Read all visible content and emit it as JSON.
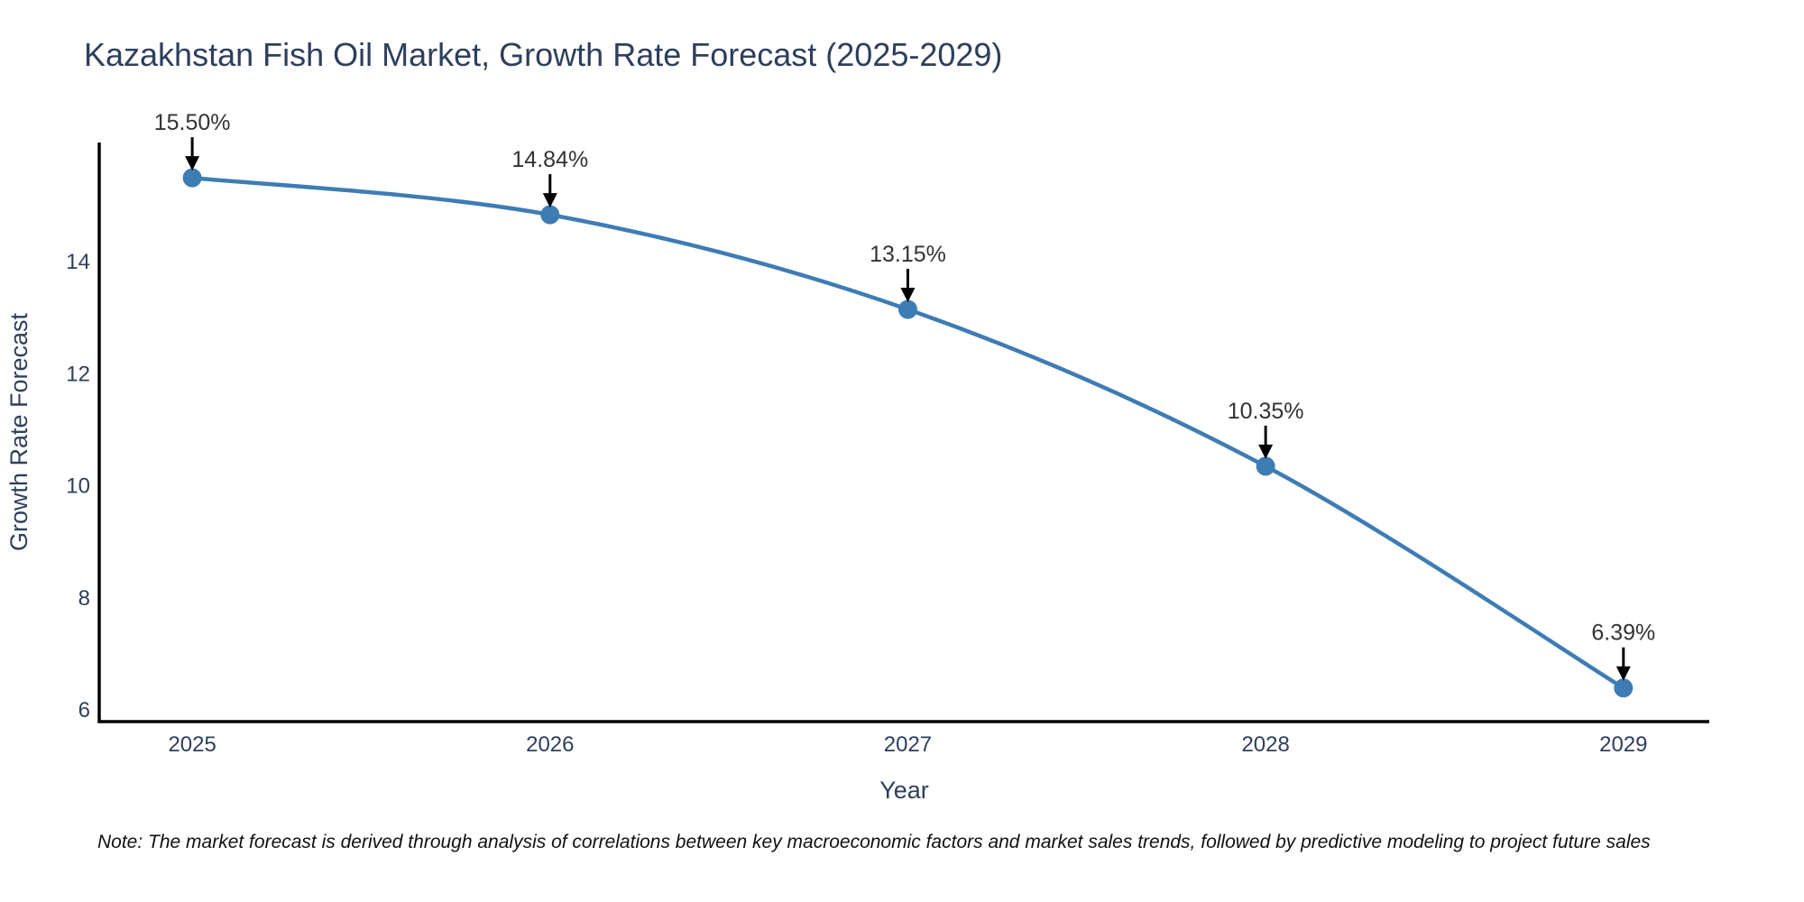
{
  "title": "Kazakhstan Fish Oil Market, Growth Rate Forecast (2025-2029)",
  "note": "Note: The market forecast is derived through analysis of correlations between key macroeconomic factors and market sales trends, followed by predictive modeling to project future sales",
  "chart_data": {
    "type": "line",
    "title": "Kazakhstan Fish Oil Market, Growth Rate Forecast (2025-2029)",
    "xlabel": "Year",
    "ylabel": "Growth Rate Forecast",
    "x": [
      2025,
      2026,
      2027,
      2028,
      2029
    ],
    "values": [
      15.5,
      14.84,
      13.15,
      10.35,
      6.39
    ],
    "point_labels": [
      "15.50%",
      "14.84%",
      "13.15%",
      "10.35%",
      "6.39%"
    ],
    "xticks": [
      "2025",
      "2026",
      "2027",
      "2028",
      "2029"
    ],
    "yticks": [
      6,
      8,
      10,
      12,
      14
    ],
    "xlim": [
      2024.74,
      2029.24
    ],
    "ylim": [
      5.79,
      16.13
    ],
    "grid": false,
    "legend": "none",
    "marker_style": "circle",
    "annotation_style": "text-with-down-arrow",
    "colors": {
      "line": "#3e7cb4",
      "marker": "#3e7cb4",
      "axis": "#000000",
      "tick_text": "#2e3f5c",
      "title_text": "#2e3f5c",
      "annotation_text": "#333333",
      "annotation_arrow": "#000000",
      "background": "#ffffff"
    }
  }
}
